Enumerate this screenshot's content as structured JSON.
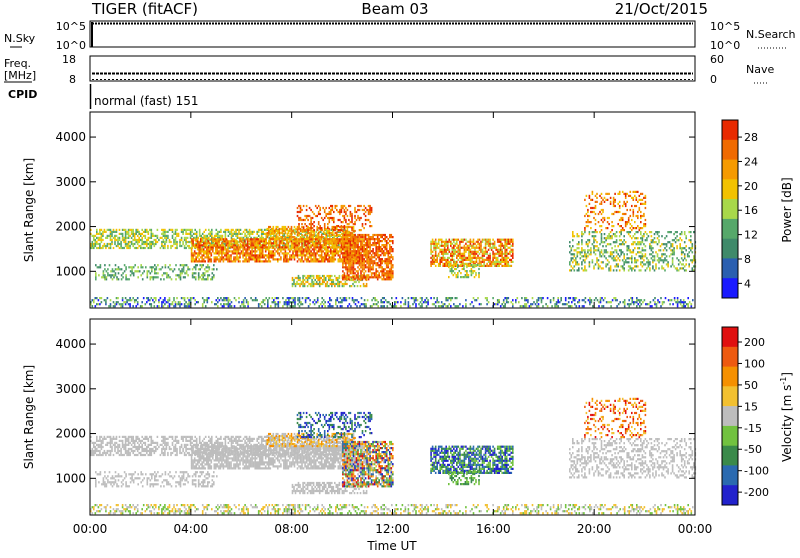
{
  "header": {
    "station": "TIGER (fitACF)",
    "beam": "Beam 03",
    "date": "21/Oct/2015"
  },
  "panels": {
    "nsky_label": "N.Sky",
    "nsky_ticks": [
      "10^5",
      "10^0"
    ],
    "nsearch_label": "N.Search",
    "freq_label_1": "Freq.",
    "freq_label_2": "[MHz]",
    "freq_ticks": [
      "18",
      "8"
    ],
    "nave_label": "Nave",
    "nave_ticks": [
      "60",
      "0"
    ],
    "cpid_label": "CPID",
    "cpid_value": "normal (fast) 151"
  },
  "colors": {
    "power": [
      "#1a1aff",
      "#2a5fb0",
      "#3f8a6a",
      "#56a86a",
      "#a8d84a",
      "#f2c200",
      "#f59a00",
      "#f06a00",
      "#e82a00"
    ],
    "velocity": [
      "#2222cc",
      "#2a6ab0",
      "#3a8a4a",
      "#72c240",
      "#bdbdbd",
      "#f2c030",
      "#f59000",
      "#ee5a10",
      "#e01010"
    ]
  },
  "chart_data": [
    {
      "type": "heatmap",
      "name": "power",
      "xlabel": "",
      "ylabel": "Slant Range [km]",
      "x_ticks": [
        "00:00",
        "04:00",
        "08:00",
        "12:00",
        "16:00",
        "20:00",
        "00:00"
      ],
      "y_ticks": [
        "4000",
        "3000",
        "2000",
        "1000"
      ],
      "xlim_hours": [
        0,
        24
      ],
      "ylim_km": [
        180,
        4560
      ],
      "colorbar_label": "Power [dB]",
      "colorbar_ticks": [
        "28",
        "24",
        "20",
        "16",
        "12",
        "8",
        "4"
      ],
      "colorbar_range": [
        0,
        32
      ]
    },
    {
      "type": "heatmap",
      "name": "velocity",
      "xlabel": "Time UT",
      "ylabel": "Slant Range [km]",
      "x_ticks": [
        "00:00",
        "04:00",
        "08:00",
        "12:00",
        "16:00",
        "20:00",
        "00:00"
      ],
      "y_ticks": [
        "4000",
        "3000",
        "2000",
        "1000"
      ],
      "xlim_hours": [
        0,
        24
      ],
      "ylim_km": [
        180,
        4560
      ],
      "colorbar_label": "Velocity [m s",
      "colorbar_label_sup": "-1",
      "colorbar_label_end": "]",
      "colorbar_ticks": [
        "200",
        "100",
        "50",
        "15",
        "-15",
        "-50",
        "-100",
        "-200"
      ]
    }
  ]
}
